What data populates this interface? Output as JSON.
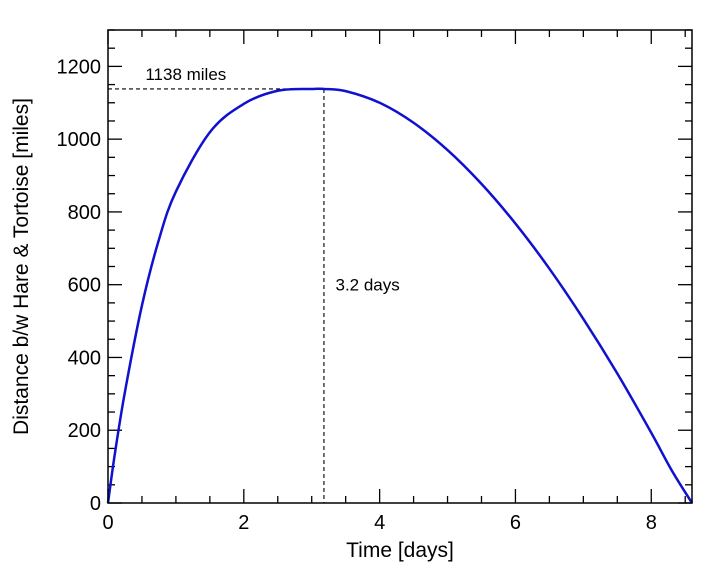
{
  "chart_data": {
    "type": "line",
    "xlabel": "Time [days]",
    "ylabel": "Distance b/w Hare & Tortoise [miles]",
    "xlim": [
      0,
      8.6
    ],
    "ylim": [
      0,
      1300
    ],
    "x_ticks": [
      0,
      2,
      4,
      6,
      8
    ],
    "x_tick_labels": [
      "0",
      "2",
      "4",
      "6",
      "8"
    ],
    "y_ticks": [
      0,
      200,
      400,
      600,
      800,
      1000,
      1200
    ],
    "y_tick_labels": [
      "0",
      "200",
      "400",
      "600",
      "800",
      "1000",
      "1200"
    ],
    "x_minor_step": 0.5,
    "y_minor_step": 50,
    "series": [
      {
        "color": "#1010d0",
        "x": [
          0,
          0.1,
          0.25,
          0.5,
          0.75,
          1.0,
          1.5,
          2.0,
          2.5,
          3.0,
          3.18,
          3.5,
          4.0,
          4.5,
          5.0,
          5.5,
          6.0,
          6.5,
          7.0,
          7.5,
          8.0,
          8.3,
          8.6
        ],
        "y": [
          0,
          134,
          306,
          543,
          724,
          856,
          1019,
          1097,
          1133,
          1138,
          1138,
          1132,
          1100,
          1045,
          970,
          877,
          768,
          644,
          506,
          356,
          193,
          90,
          0
        ]
      }
    ],
    "annotations": [
      {
        "text": "1138 miles",
        "x": 0.55,
        "y": 1138,
        "ref_x": 3.18,
        "ref_y": 1138,
        "line": "horizontal"
      },
      {
        "text": "3.2 days",
        "x": 3.35,
        "y": 600,
        "ref_x": 3.18,
        "ref_y": 1138,
        "line": "vertical"
      }
    ]
  }
}
